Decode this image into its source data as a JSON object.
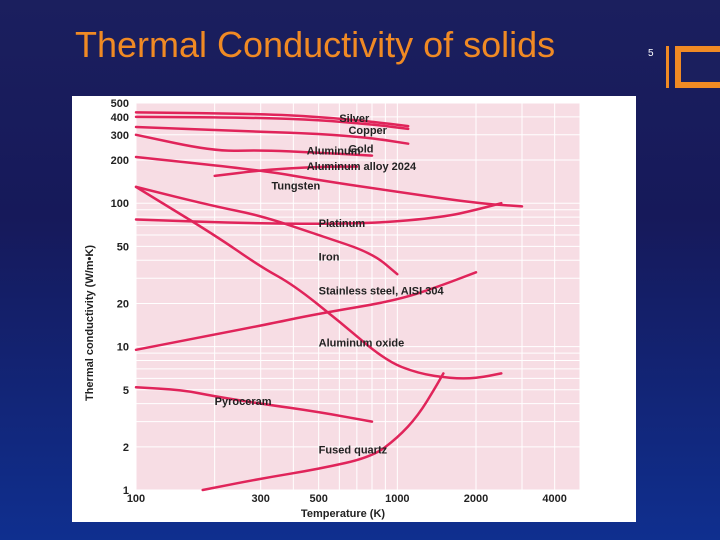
{
  "slide": {
    "title": "Thermal Conductivity of solids",
    "page_number": "5"
  },
  "colors": {
    "accent": "#f08a24",
    "background": "#1b1f5e",
    "plot_background": "#f7dde4",
    "grid": "#ffffff",
    "curve": "#e0245a"
  },
  "chart_data": {
    "type": "line",
    "xlabel": "Temperature (K)",
    "ylabel": "Thermal conductivity (W/m•K)",
    "x_scale": "log",
    "y_scale": "log",
    "xlim": [
      100,
      5000
    ],
    "ylim": [
      1,
      500
    ],
    "x_ticks": [
      100,
      300,
      500,
      1000,
      2000,
      4000
    ],
    "x_tick_labels": [
      "100",
      "300",
      "500",
      "1000",
      "2000",
      "4000"
    ],
    "y_ticks": [
      1,
      2,
      5,
      10,
      20,
      50,
      100,
      200,
      300,
      400,
      500
    ],
    "y_tick_labels": [
      "1",
      "2",
      "5",
      "10",
      "20",
      "50",
      "100",
      "200",
      "300",
      "400",
      "500"
    ],
    "grid": true,
    "series": [
      {
        "name": "Silver",
        "label_at": [
          600,
          370
        ],
        "points": [
          [
            100,
            430
          ],
          [
            300,
            420
          ],
          [
            500,
            400
          ],
          [
            800,
            370
          ],
          [
            1100,
            345
          ]
        ]
      },
      {
        "name": "Copper",
        "label_at": [
          650,
          305
        ],
        "points": [
          [
            100,
            400
          ],
          [
            300,
            395
          ],
          [
            500,
            380
          ],
          [
            800,
            355
          ],
          [
            1100,
            330
          ]
        ]
      },
      {
        "name": "Gold",
        "label_at": [
          650,
          225
        ],
        "points": [
          [
            100,
            340
          ],
          [
            300,
            315
          ],
          [
            500,
            305
          ],
          [
            800,
            285
          ],
          [
            1100,
            260
          ]
        ]
      },
      {
        "name": "Aluminum",
        "label_at": [
          450,
          218
        ],
        "points": [
          [
            100,
            300
          ],
          [
            200,
            230
          ],
          [
            300,
            235
          ],
          [
            500,
            225
          ],
          [
            800,
            215
          ]
        ]
      },
      {
        "name": "Aluminum alloy 2024",
        "label_at": [
          450,
          170
        ],
        "points": [
          [
            200,
            155
          ],
          [
            300,
            170
          ],
          [
            500,
            180
          ],
          [
            700,
            180
          ]
        ]
      },
      {
        "name": "Tungsten",
        "label_at": [
          330,
          125
        ],
        "points": [
          [
            100,
            210
          ],
          [
            300,
            170
          ],
          [
            500,
            145
          ],
          [
            1000,
            120
          ],
          [
            2000,
            100
          ],
          [
            3000,
            95
          ]
        ]
      },
      {
        "name": "Platinum",
        "label_at": [
          500,
          68
        ],
        "points": [
          [
            100,
            77
          ],
          [
            300,
            72
          ],
          [
            800,
            72
          ],
          [
            1500,
            80
          ],
          [
            2000,
            90
          ],
          [
            2500,
            100
          ]
        ]
      },
      {
        "name": "Iron",
        "label_at": [
          500,
          40
        ],
        "points": [
          [
            100,
            130
          ],
          [
            200,
            95
          ],
          [
            300,
            82
          ],
          [
            500,
            60
          ],
          [
            800,
            45
          ],
          [
            1000,
            32
          ]
        ]
      },
      {
        "name": "Stainless steel, AISI 304",
        "label_at": [
          500,
          23
        ],
        "points": [
          [
            100,
            9.5
          ],
          [
            300,
            14
          ],
          [
            500,
            17
          ],
          [
            1000,
            21
          ],
          [
            1500,
            27
          ],
          [
            2000,
            33
          ]
        ]
      },
      {
        "name": "Aluminum oxide",
        "label_at": [
          500,
          10
        ],
        "points": [
          [
            100,
            130
          ],
          [
            200,
            60
          ],
          [
            300,
            36
          ],
          [
            400,
            27
          ],
          [
            600,
            15
          ],
          [
            900,
            8
          ],
          [
            1200,
            6.5
          ],
          [
            1600,
            6
          ],
          [
            2000,
            6
          ],
          [
            2500,
            6.5
          ]
        ]
      },
      {
        "name": "Pyroceram",
        "label_at": [
          200,
          3.9
        ],
        "points": [
          [
            100,
            5.2
          ],
          [
            150,
            5
          ],
          [
            200,
            4.5
          ],
          [
            300,
            4
          ],
          [
            500,
            3.5
          ],
          [
            800,
            3
          ]
        ]
      },
      {
        "name": "Fused quartz",
        "label_at": [
          500,
          1.8
        ],
        "points": [
          [
            180,
            1
          ],
          [
            300,
            1.2
          ],
          [
            500,
            1.4
          ],
          [
            800,
            1.7
          ],
          [
            1000,
            2.3
          ],
          [
            1200,
            3.3
          ],
          [
            1400,
            5.2
          ],
          [
            1500,
            6.5
          ]
        ]
      }
    ]
  }
}
